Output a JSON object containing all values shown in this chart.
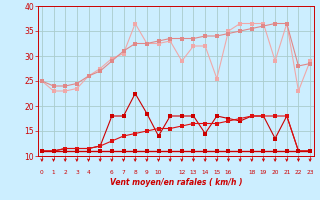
{
  "background_color": "#cceeff",
  "grid_color": "#aacccc",
  "xlabel": "Vent moyen/en rafales ( km/h )",
  "ylim": [
    10,
    40
  ],
  "yticks": [
    10,
    15,
    20,
    25,
    30,
    35,
    40
  ],
  "x_values": [
    0,
    1,
    2,
    3,
    4,
    5,
    6,
    7,
    8,
    9,
    10,
    11,
    12,
    13,
    14,
    15,
    16,
    17,
    18,
    19,
    20,
    21,
    22,
    23
  ],
  "x_labels": [
    "0",
    "1",
    "2",
    "3",
    "4",
    "",
    "6",
    "7",
    "8",
    "9",
    "10",
    "",
    "12",
    "13",
    "14",
    "15",
    "16",
    "",
    "18",
    "19",
    "20",
    "21",
    "22",
    "23"
  ],
  "line1_y": [
    25.0,
    23.0,
    23.0,
    23.5,
    26.0,
    27.5,
    29.5,
    30.5,
    36.5,
    32.5,
    32.5,
    33.0,
    29.0,
    32.0,
    32.0,
    25.5,
    35.0,
    36.5,
    36.5,
    36.5,
    29.0,
    36.5,
    23.0,
    29.0
  ],
  "line2_y": [
    25.0,
    24.0,
    24.0,
    24.5,
    26.0,
    27.0,
    29.0,
    31.0,
    32.5,
    32.5,
    33.0,
    33.5,
    33.5,
    33.5,
    34.0,
    34.0,
    34.5,
    35.0,
    35.5,
    36.0,
    36.5,
    36.5,
    28.0,
    28.5
  ],
  "line3_y": [
    11.0,
    11.0,
    11.5,
    11.5,
    11.5,
    12.0,
    18.0,
    18.0,
    22.5,
    18.5,
    14.0,
    18.0,
    18.0,
    18.0,
    14.5,
    18.0,
    17.5,
    17.0,
    18.0,
    18.0,
    13.5,
    18.0,
    11.0,
    11.0
  ],
  "line4_y": [
    11.0,
    11.0,
    11.5,
    11.5,
    11.5,
    12.0,
    13.0,
    14.0,
    14.5,
    15.0,
    15.5,
    15.5,
    16.0,
    16.5,
    16.5,
    16.5,
    17.0,
    17.5,
    18.0,
    18.0,
    18.0,
    18.0,
    11.0,
    11.0
  ],
  "line5_y": [
    11.0,
    11.0,
    11.0,
    11.0,
    11.0,
    11.0,
    11.0,
    11.0,
    11.0,
    11.0,
    11.0,
    11.0,
    11.0,
    11.0,
    11.0,
    11.0,
    11.0,
    11.0,
    11.0,
    11.0,
    11.0,
    11.0,
    11.0,
    11.0
  ],
  "color_light1": "#f0a8a8",
  "color_light2": "#e08888",
  "color_dark1": "#cc0000",
  "color_dark2": "#dd1111",
  "color_flat": "#cc0000",
  "lw": 0.8,
  "ms": 2.5
}
